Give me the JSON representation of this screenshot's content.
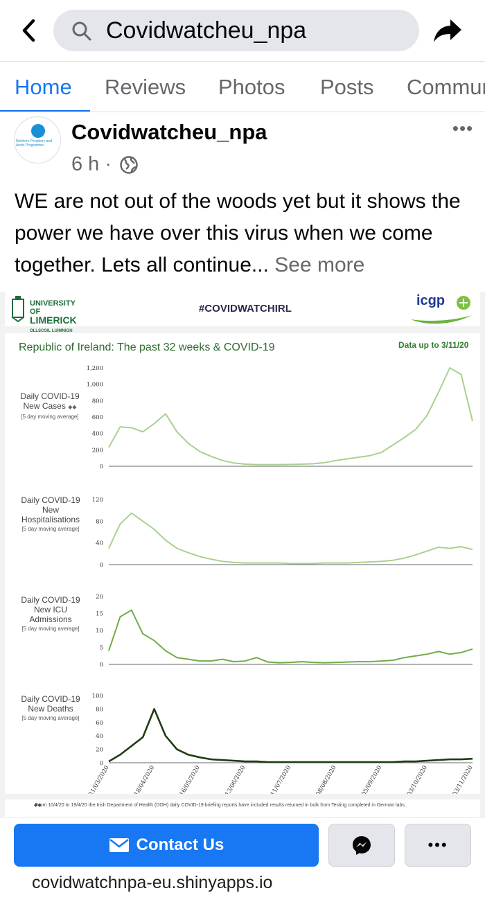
{
  "search": {
    "query": "Covidwatcheu_npa"
  },
  "icons": {
    "back": "back-arrow-icon",
    "search": "search-icon",
    "share": "share-icon",
    "globe": "globe-icon",
    "more": "more-icon",
    "envelope": "envelope-icon",
    "messenger": "messenger-icon"
  },
  "tabs": [
    {
      "label": "Home",
      "active": true
    },
    {
      "label": "Reviews"
    },
    {
      "label": "Photos"
    },
    {
      "label": "Posts"
    },
    {
      "label": "Community"
    }
  ],
  "post": {
    "author": "Covidwatcheu_npa",
    "time": "6 h ·",
    "avatar_text": "Northern Periphery and Arctic Programme",
    "text": "WE are not out of the woods yet but it shows the power we have over this virus when we come together. Lets all continue...",
    "see_more": "See more"
  },
  "image": {
    "university": "UNIVERSITY OF",
    "university_big": "LIMERICK",
    "university_irish": "OLLSCOIL LUIMNIGH",
    "hashtag": "#COVIDWATCHIRL",
    "partner_logo": "icgp",
    "footnote": "From 10/4/20 to 19/4/20 the Irish Department of Health (DOH) daily COVID-19 briefing reports have included results returned in bulk from Testing completed in German labs.",
    "footnote_mark": "◆◆"
  },
  "chart_data": [
    {
      "type": "line",
      "title": "Republic of Ireland: The past 32 weeks & COVID-19",
      "date_note": "Data up to 3/11/20",
      "ylabel": "Daily COVID-19 New Cases",
      "ylabel_note": "[5 day moving average]",
      "marker": "◆◆",
      "yticks": [
        "0",
        "200",
        "400",
        "600",
        "800",
        "1,000",
        "1,200"
      ],
      "ylim": [
        0,
        1200
      ],
      "color": "#a9d18e",
      "x": [
        0,
        1,
        2,
        3,
        4,
        5,
        6,
        7,
        8,
        9,
        10,
        11,
        12,
        13,
        14,
        15,
        16,
        17,
        18,
        19,
        20,
        21,
        22,
        23,
        24,
        25,
        26,
        27,
        28,
        29,
        30,
        31,
        32
      ],
      "values": [
        230,
        480,
        470,
        420,
        520,
        640,
        420,
        280,
        180,
        120,
        70,
        40,
        25,
        20,
        20,
        20,
        22,
        25,
        30,
        45,
        70,
        90,
        110,
        130,
        170,
        260,
        350,
        450,
        620,
        900,
        1200,
        1120,
        550
      ]
    },
    {
      "type": "line",
      "ylabel": "Daily COVID-19 New Hospitalisations",
      "ylabel_note": "[5 day moving average]",
      "yticks": [
        "0",
        "40",
        "80",
        "120"
      ],
      "ylim": [
        0,
        120
      ],
      "color": "#a9d18e",
      "x": [
        0,
        1,
        2,
        3,
        4,
        5,
        6,
        7,
        8,
        9,
        10,
        11,
        12,
        13,
        14,
        15,
        16,
        17,
        18,
        19,
        20,
        21,
        22,
        23,
        24,
        25,
        26,
        27,
        28,
        29,
        30,
        31,
        32
      ],
      "values": [
        30,
        75,
        95,
        80,
        65,
        45,
        30,
        22,
        15,
        10,
        6,
        4,
        3,
        3,
        3,
        3,
        2,
        2,
        2,
        3,
        3,
        3,
        4,
        5,
        6,
        8,
        12,
        18,
        25,
        32,
        30,
        33,
        28
      ]
    },
    {
      "type": "line",
      "ylabel": "Daily COVID-19 New ICU Admissions",
      "ylabel_note": "[5 day moving average]",
      "yticks": [
        "0",
        "5",
        "10",
        "15",
        "20"
      ],
      "ylim": [
        0,
        20
      ],
      "color": "#70ad47",
      "x": [
        0,
        1,
        2,
        3,
        4,
        5,
        6,
        7,
        8,
        9,
        10,
        11,
        12,
        13,
        14,
        15,
        16,
        17,
        18,
        19,
        20,
        21,
        22,
        23,
        24,
        25,
        26,
        27,
        28,
        29,
        30,
        31,
        32
      ],
      "values": [
        4,
        14,
        16,
        9,
        7,
        4,
        2,
        1.5,
        1,
        1,
        1.5,
        0.8,
        1,
        2,
        0.7,
        0.5,
        0.6,
        0.8,
        0.6,
        0.5,
        0.6,
        0.7,
        0.8,
        0.8,
        1,
        1.2,
        2,
        2.5,
        3,
        3.8,
        3,
        3.5,
        4.5
      ]
    },
    {
      "type": "line",
      "ylabel": "Daily COVID-19 New Deaths",
      "ylabel_note": "[5 day moving average]",
      "yticks": [
        "0",
        "20",
        "40",
        "60",
        "80",
        "100"
      ],
      "ylim": [
        0,
        100
      ],
      "color": "#1f3d12",
      "x": [
        0,
        1,
        2,
        3,
        4,
        5,
        6,
        7,
        8,
        9,
        10,
        11,
        12,
        13,
        14,
        15,
        16,
        17,
        18,
        19,
        20,
        21,
        22,
        23,
        24,
        25,
        26,
        27,
        28,
        29,
        30,
        31,
        32
      ],
      "values": [
        2,
        12,
        25,
        38,
        80,
        40,
        20,
        12,
        8,
        5,
        4,
        3,
        2,
        2,
        1,
        1,
        1,
        1,
        1,
        1,
        1,
        1,
        1,
        1,
        1,
        1,
        2,
        2,
        3,
        4,
        5,
        5,
        6
      ],
      "xticks": [
        "21/03/2020",
        "18/04/2020",
        "16/05/2020",
        "13/06/2020",
        "11/07/2020",
        "08/08/2020",
        "05/09/2020",
        "03/10/2020",
        "03/11/2020"
      ]
    }
  ],
  "actions": {
    "contact": "Contact Us",
    "more": "•••",
    "link": "covidwatchnpa-eu.shinyapps.io"
  }
}
